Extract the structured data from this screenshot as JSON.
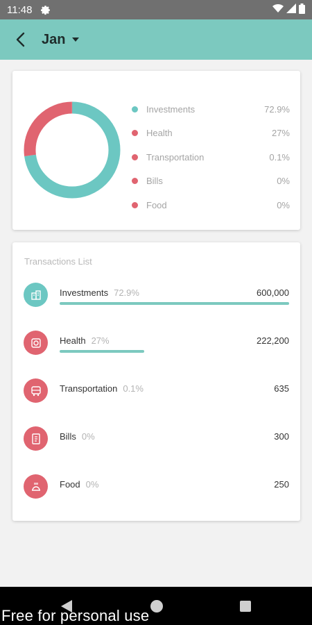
{
  "status_bar": {
    "time": "11:48",
    "icons": [
      "gear-icon",
      "wifi-icon",
      "signal-icon",
      "battery-icon"
    ]
  },
  "app_bar": {
    "back_icon": "chevron-left-icon",
    "month": "Jan",
    "caret_icon": "caret-down-icon",
    "color": "#7cc9bf"
  },
  "summary": {
    "items": [
      {
        "label": "Investments",
        "pct": "72.9%",
        "color": "#6cc7c2",
        "share": 0.729
      },
      {
        "label": "Health",
        "pct": "27%",
        "color": "#e06470",
        "share": 0.27
      },
      {
        "label": "Transportation",
        "pct": "0.1%",
        "color": "#e06470",
        "share": 0.001
      },
      {
        "label": "Bills",
        "pct": "0%",
        "color": "#e06470",
        "share": 0
      },
      {
        "label": "Food",
        "pct": "0%",
        "color": "#e06470",
        "share": 0
      }
    ]
  },
  "transactions": {
    "title": "Transactions List",
    "items": [
      {
        "name": "Investments",
        "pct": "72.9%",
        "amount": "600,000",
        "icon": "investment-icon",
        "color": "#6cc7c2",
        "progress": 1.0
      },
      {
        "name": "Health",
        "pct": "27%",
        "amount": "222,200",
        "icon": "health-icon",
        "color": "#e06470",
        "progress": 0.37
      },
      {
        "name": "Transportation",
        "pct": "0.1%",
        "amount": "635",
        "icon": "bus-icon",
        "color": "#e06470",
        "progress": 0.001
      },
      {
        "name": "Bills",
        "pct": "0%",
        "amount": "300",
        "icon": "bill-icon",
        "color": "#e06470",
        "progress": 0
      },
      {
        "name": "Food",
        "pct": "0%",
        "amount": "250",
        "icon": "food-icon",
        "color": "#e06470",
        "progress": 0
      }
    ]
  },
  "nav_bar": {
    "icons": [
      "back-triangle-icon",
      "home-circle-icon",
      "recents-square-icon"
    ]
  },
  "watermark": "Free for personal use"
}
